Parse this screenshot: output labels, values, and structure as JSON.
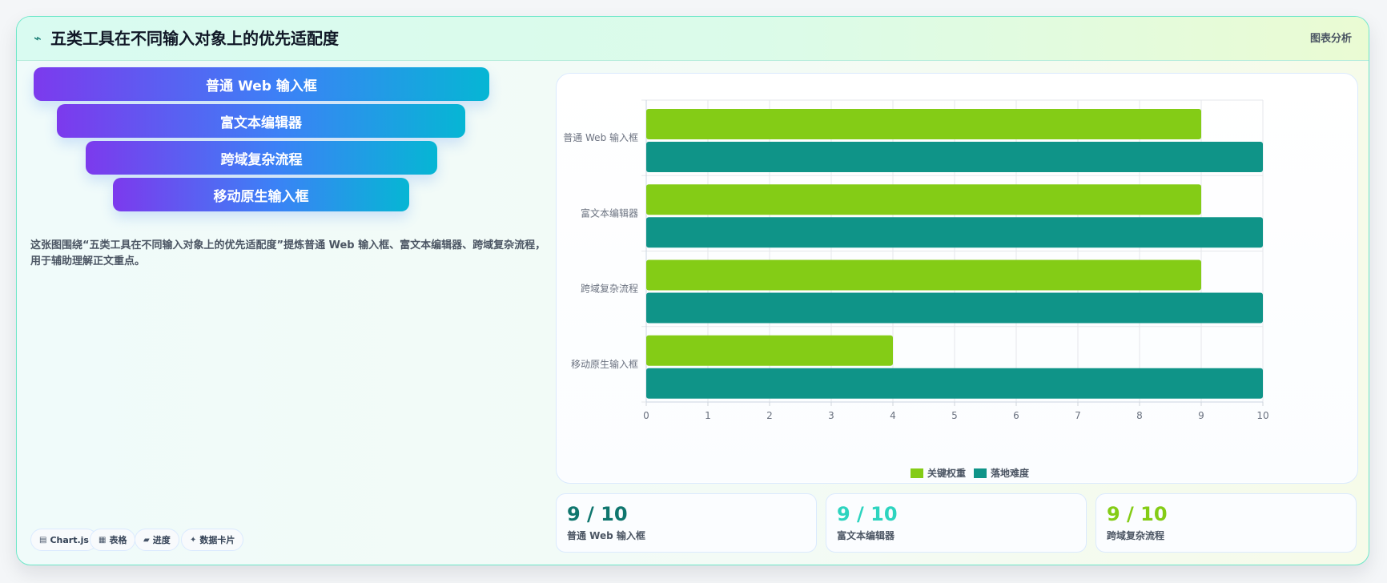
{
  "header": {
    "icon": "⌁",
    "title": "五类工具在不同输入对象上的优先适配度",
    "tag": "图表分析"
  },
  "funnel": {
    "items": [
      {
        "label": "普通 Web 输入框"
      },
      {
        "label": "富文本编辑器"
      },
      {
        "label": "跨域复杂流程"
      },
      {
        "label": "移动原生输入框"
      }
    ],
    "gradient": [
      "#7c3aed",
      "#3b82f6",
      "#06b6d4"
    ]
  },
  "description": "这张图围绕“五类工具在不同输入对象上的优先适配度”提炼普通 Web 输入框、富文本编辑器、跨域复杂流程，用于辅助理解正文重点。",
  "tags": [
    {
      "icon": "▤",
      "label": "Chart.js"
    },
    {
      "icon": "▦",
      "label": "表格"
    },
    {
      "icon": "▰",
      "label": "进度"
    },
    {
      "icon": "✦",
      "label": "数据卡片"
    }
  ],
  "chart_data": {
    "type": "bar",
    "orientation": "horizontal",
    "categories": [
      "普通 Web 输入框",
      "富文本编辑器",
      "跨域复杂流程",
      "移动原生输入框"
    ],
    "series": [
      {
        "name": "关键权重",
        "values": [
          9,
          9,
          9,
          4
        ],
        "color": "#84cc16"
      },
      {
        "name": "落地难度",
        "values": [
          10,
          10,
          10,
          10
        ],
        "color": "#0f9488"
      }
    ],
    "xlim": [
      0,
      10
    ],
    "x_ticks": [
      0,
      1,
      2,
      3,
      4,
      5,
      6,
      7,
      8,
      9,
      10
    ],
    "grid": true,
    "legend": "bottom-center"
  },
  "metrics": [
    {
      "value": "9 / 10",
      "label": "普通 Web 输入框",
      "color": "#0f766e"
    },
    {
      "value": "9 / 10",
      "label": "富文本编辑器",
      "color": "#2dd4bf"
    },
    {
      "value": "9 / 10",
      "label": "跨域复杂流程",
      "color": "#84cc16"
    }
  ]
}
